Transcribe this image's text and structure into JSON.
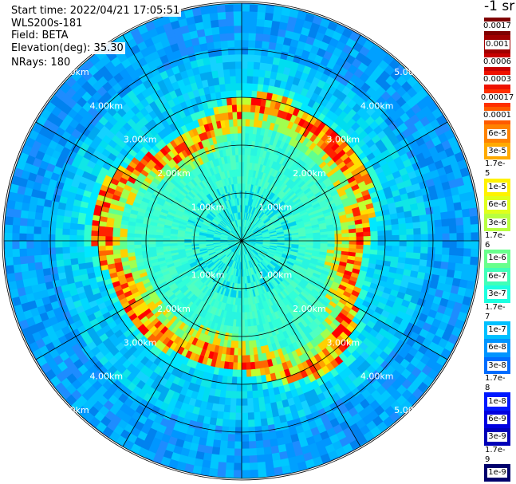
{
  "header": {
    "start_time": "Start time: 2022/04/21 17:05:51",
    "instrument": "WLS200s-181",
    "field": "Field: BETA",
    "elevation": "Elevation(deg): 35.30",
    "nrays": "NRays: 180"
  },
  "colorbar": {
    "units": "-1 sr",
    "labels": [
      "0.0017",
      "0.001",
      "0.0006",
      "0.0003",
      "0.00017",
      "0.0001",
      "6e-5",
      "3e-5",
      "1.7e-5",
      "1e-5",
      "6e-6",
      "3e-6",
      "1.7e-6",
      "1e-6",
      "6e-7",
      "3e-7",
      "1.7e-7",
      "1e-7",
      "6e-8",
      "3e-8",
      "1.7e-8",
      "1e-8",
      "6e-9",
      "3e-9",
      "1.7e-9",
      "1e-9"
    ],
    "colors": [
      "#7f0000",
      "#a00000",
      "#c80000",
      "#ee1100",
      "#ff3000",
      "#ff5a00",
      "#ff8200",
      "#ffaa00",
      "#ffd000",
      "#fff200",
      "#e0ff1c",
      "#b8ff40",
      "#90ff64",
      "#68ff8c",
      "#40ffb8",
      "#1cffe0",
      "#00e8ff",
      "#00c0ff",
      "#0094ff",
      "#006cff",
      "#0040ff",
      "#0018ff",
      "#0000e0",
      "#0000b8",
      "#000090",
      "#00006c"
    ]
  },
  "chart_data": {
    "type": "heatmap",
    "projection": "polar PPI",
    "field": "BETA",
    "elevation_deg": 35.3,
    "nrays": 180,
    "colorscale": "log",
    "range_rings_km": [
      1,
      2,
      3,
      4,
      5,
      6
    ],
    "ring_labels": [
      "1.00km",
      "2.00km",
      "3.00km",
      "4.00km",
      "5.00km"
    ],
    "spokes_deg": [
      0,
      30,
      60,
      90,
      120,
      150,
      180,
      210,
      240,
      270,
      300,
      330
    ],
    "features": {
      "boundary_layer_edge_km": 2.6,
      "inner_value": "3e-7",
      "outer_value": "1e-7",
      "edge_value": "3e-5"
    }
  }
}
